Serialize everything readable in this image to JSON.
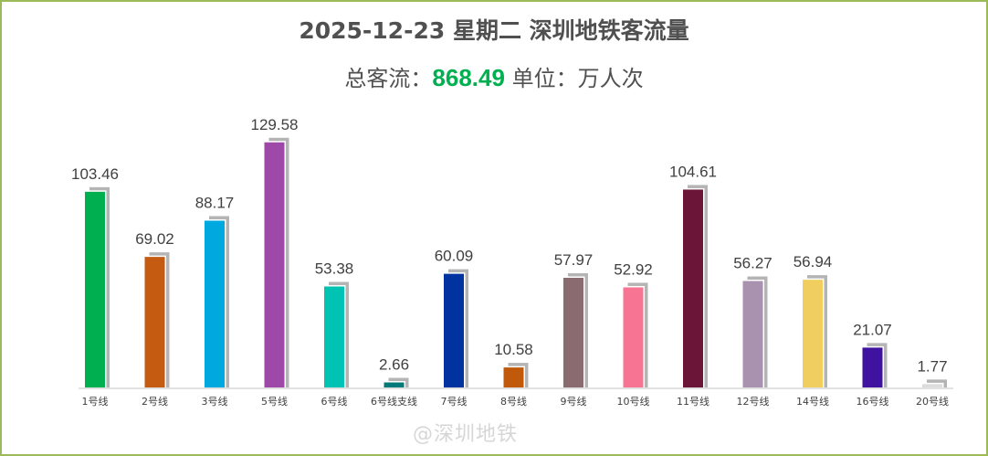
{
  "title": "2025-12-23 星期二 深圳地铁客流量",
  "subtitle": {
    "prefix": "总客流：",
    "total": "868.49",
    "unit": "单位：万人次"
  },
  "watermark": "@深圳地铁",
  "chart_data": {
    "type": "bar",
    "title": "2025-12-23 星期二 深圳地铁客流量",
    "xlabel": "",
    "ylabel": "",
    "ylim": [
      0,
      145
    ],
    "grid": false,
    "categories": [
      "1号线",
      "2号线",
      "3号线",
      "5号线",
      "6号线",
      "6号线支线",
      "7号线",
      "8号线",
      "9号线",
      "10号线",
      "11号线",
      "12号线",
      "14号线",
      "16号线",
      "20号线"
    ],
    "values": [
      103.46,
      69.02,
      88.17,
      129.58,
      53.38,
      2.66,
      60.09,
      10.58,
      57.97,
      52.92,
      104.61,
      56.27,
      56.94,
      21.07,
      1.77
    ],
    "labels": [
      "103.46",
      "69.02",
      "88.17",
      "129.58",
      "53.38",
      "2.66",
      "60.09",
      "10.58",
      "57.97",
      "52.92",
      "104.61",
      "56.27",
      "56.94",
      "21.07",
      "1.77"
    ],
    "colors": [
      "#00b050",
      "#c55a11",
      "#00a8e0",
      "#9e48a8",
      "#00c3b4",
      "#007a78",
      "#0033a0",
      "#c05a0a",
      "#8a6b70",
      "#f87493",
      "#6b1638",
      "#a991b0",
      "#f0ce60",
      "#3f13a0",
      "#dcdcdc"
    ],
    "shadow_color": "#b4b4b4"
  }
}
